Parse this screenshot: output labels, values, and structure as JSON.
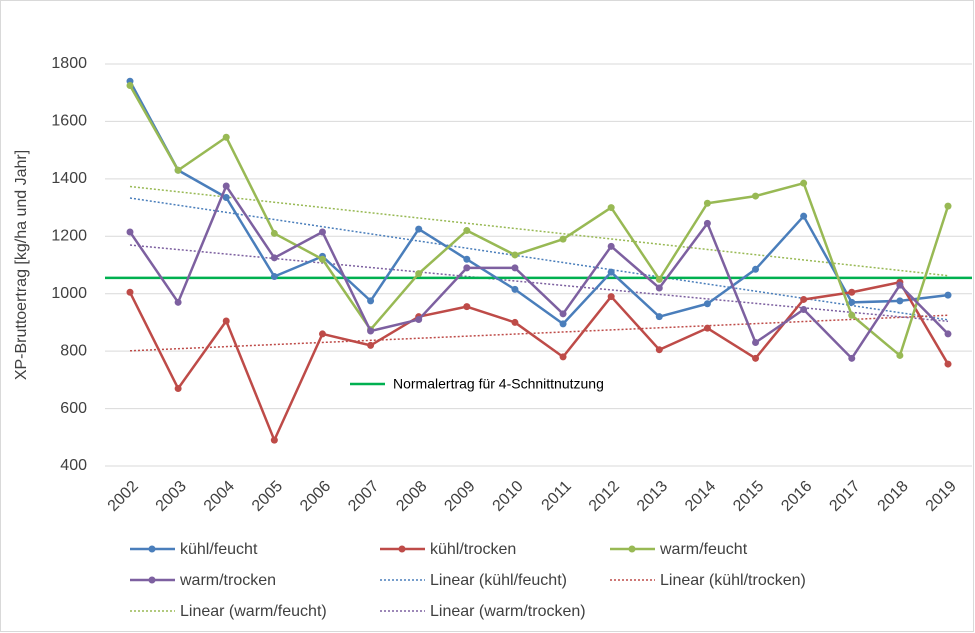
{
  "chart_data": {
    "type": "line",
    "y_label": "XP-Bruttoertrag [kg/ha und Jahr]",
    "categories": [
      "2002",
      "2003",
      "2004",
      "2005",
      "2006",
      "2007",
      "2008",
      "2009",
      "2010",
      "2011",
      "2012",
      "2013",
      "2014",
      "2015",
      "2016",
      "2017",
      "2018",
      "2019"
    ],
    "series": [
      {
        "name": "kühl/feucht",
        "color": "#4a7ebb",
        "trendline": "Linear (kühl/feucht)",
        "values": [
          1740,
          1430,
          1335,
          1060,
          1130,
          975,
          1225,
          1120,
          1015,
          895,
          1075,
          920,
          965,
          1085,
          1270,
          970,
          975,
          995
        ]
      },
      {
        "name": "kühl/trocken",
        "color": "#be4b48",
        "trendline": "Linear (kühl/trocken)",
        "values": [
          1005,
          670,
          905,
          490,
          860,
          820,
          920,
          955,
          900,
          780,
          990,
          805,
          880,
          775,
          980,
          1005,
          1040,
          755
        ]
      },
      {
        "name": "warm/feucht",
        "color": "#98b954",
        "trendline": "Linear (warm/feucht)",
        "values": [
          1725,
          1430,
          1545,
          1210,
          1120,
          875,
          1070,
          1220,
          1135,
          1190,
          1300,
          1050,
          1315,
          1340,
          1385,
          925,
          785,
          1305
        ]
      },
      {
        "name": "warm/trocken",
        "color": "#7d60a0",
        "trendline": "Linear (warm/trocken)",
        "values": [
          1215,
          970,
          1375,
          1125,
          1215,
          870,
          910,
          1090,
          1090,
          930,
          1165,
          1020,
          1245,
          830,
          945,
          775,
          1030,
          860
        ]
      }
    ],
    "reference_line": {
      "value": 1055,
      "label": "Normalertrag für 4-Schnittnutzung",
      "color": "#00b050"
    },
    "ylim": [
      400,
      1800
    ],
    "yticks": [
      400,
      600,
      800,
      1000,
      1200,
      1400,
      1600,
      1800
    ],
    "grid": true
  }
}
